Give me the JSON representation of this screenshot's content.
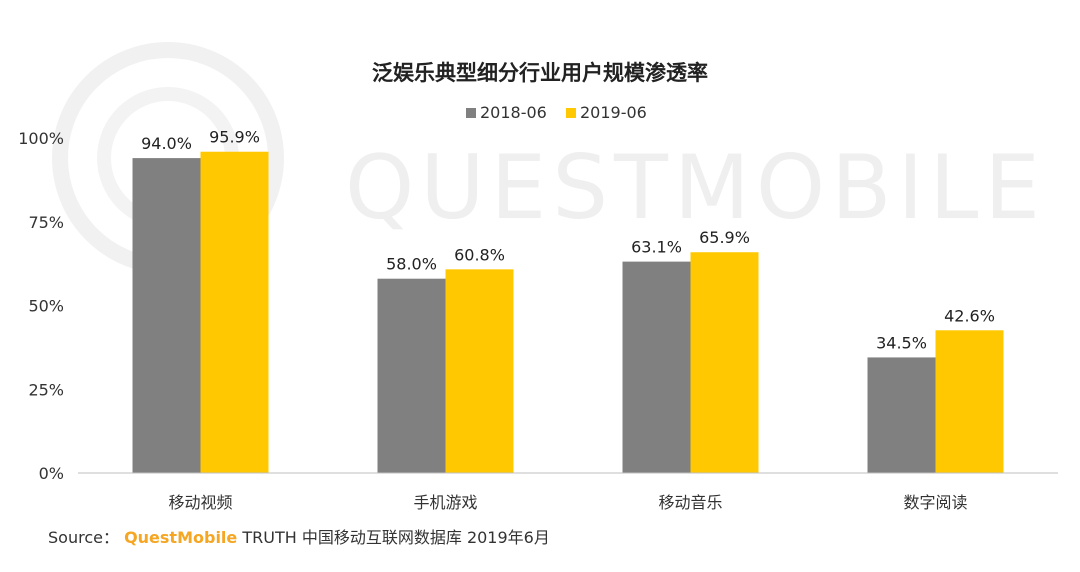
{
  "chart_data": {
    "type": "bar",
    "title": "泛娱乐典型细分行业用户规模渗透率",
    "categories": [
      "移动视频",
      "手机游戏",
      "移动音乐",
      "数字阅读"
    ],
    "series": [
      {
        "name": "2018-06",
        "color": "#808080",
        "values": [
          94.0,
          58.0,
          63.1,
          34.5
        ],
        "labels": [
          "94.0%",
          "58.0%",
          "63.1%",
          "34.5%"
        ]
      },
      {
        "name": "2019-06",
        "color": "#ffc800",
        "values": [
          95.9,
          60.8,
          65.9,
          42.6
        ],
        "labels": [
          "95.9%",
          "60.8%",
          "65.9%",
          "42.6%"
        ]
      }
    ],
    "yticks": [
      "0%",
      "25%",
      "50%",
      "75%",
      "100%"
    ],
    "ylim": [
      0,
      100
    ],
    "grid": false,
    "legend": "top-center"
  },
  "watermark": "QUESTMOBILE",
  "source": {
    "prefix": "Source：",
    "brand": "QuestMobile",
    "text": "TRUTH 中国移动互联网数据库 2019年6月"
  }
}
